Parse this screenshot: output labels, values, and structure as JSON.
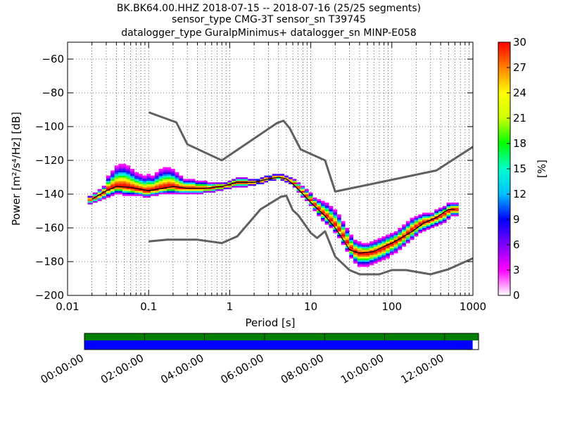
{
  "chart_data": {
    "type": "heatmap",
    "title_lines": [
      "BK.BK64.00.HHZ   2018-07-15 -- 2018-07-16  (25/25 segments)",
      "sensor_type CMG-3T sensor_sn T39745",
      "datalogger_type GuralpMinimus+ datalogger_sn MINP-E058"
    ],
    "xlabel": "Period [s]",
    "ylabel": "Power [m²/s⁴/Hz] [dB]",
    "x_scale": "log",
    "xlim": [
      0.01,
      1000
    ],
    "ylim": [
      -200,
      -50
    ],
    "x_ticks": [
      {
        "value": 0.01,
        "label": "0.01"
      },
      {
        "value": 0.1,
        "label": "0.1"
      },
      {
        "value": 1,
        "label": "1"
      },
      {
        "value": 10,
        "label": "10"
      },
      {
        "value": 100,
        "label": "100"
      },
      {
        "value": 1000,
        "label": "1000"
      }
    ],
    "y_ticks": [
      {
        "value": -60,
        "label": "−60"
      },
      {
        "value": -80,
        "label": "−80"
      },
      {
        "value": -100,
        "label": "−100"
      },
      {
        "value": -120,
        "label": "−120"
      },
      {
        "value": -140,
        "label": "−140"
      },
      {
        "value": -160,
        "label": "−160"
      },
      {
        "value": -180,
        "label": "−180"
      },
      {
        "value": -200,
        "label": "−200"
      }
    ],
    "grid": "dotted",
    "colorbar": {
      "label": "[%]",
      "range": [
        0,
        30
      ],
      "ticks": [
        {
          "value": 0,
          "label": "0"
        },
        {
          "value": 3,
          "label": "3"
        },
        {
          "value": 6,
          "label": "6"
        },
        {
          "value": 9,
          "label": "9"
        },
        {
          "value": 12,
          "label": "12"
        },
        {
          "value": 15,
          "label": "15"
        },
        {
          "value": 18,
          "label": "18"
        },
        {
          "value": 21,
          "label": "21"
        },
        {
          "value": 24,
          "label": "24"
        },
        {
          "value": 27,
          "label": "27"
        },
        {
          "value": 30,
          "label": "30"
        }
      ],
      "stops": [
        "#ffffff",
        "#ff00ff",
        "#7f00ff",
        "#0000ff",
        "#00bfff",
        "#00ffcc",
        "#00ff00",
        "#ccff00",
        "#ffff00",
        "#ff8000",
        "#ff0000"
      ]
    },
    "series": [
      {
        "color": "#606060",
        "points": [
          [
            0.1,
            -91.5
          ],
          [
            0.22,
            -97.5
          ],
          [
            0.3,
            -110.5
          ],
          [
            0.8,
            -120
          ],
          [
            3.8,
            -98
          ],
          [
            4.6,
            -96.5
          ],
          [
            5.5,
            -101
          ],
          [
            7.5,
            -113.5
          ],
          [
            15,
            -120
          ],
          [
            20,
            -138.5
          ],
          [
            354,
            -126
          ],
          [
            1000,
            -112
          ]
        ]
      },
      {
        "color": "#606060",
        "points": [
          [
            0.1,
            -168
          ],
          [
            0.17,
            -167
          ],
          [
            0.4,
            -167
          ],
          [
            0.8,
            -169
          ],
          [
            1.24,
            -165
          ],
          [
            2.4,
            -149
          ],
          [
            4.3,
            -141.5
          ],
          [
            5,
            -141
          ],
          [
            6,
            -149.5
          ],
          [
            7,
            -152.5
          ],
          [
            10,
            -163
          ],
          [
            12,
            -166
          ],
          [
            15,
            -162
          ],
          [
            20,
            -177
          ],
          [
            30,
            -185
          ],
          [
            40,
            -187.5
          ],
          [
            70,
            -187.5
          ],
          [
            100,
            -185
          ],
          [
            150,
            -185
          ],
          [
            300,
            -187.5
          ],
          [
            500,
            -184.5
          ],
          [
            1000,
            -178
          ]
        ]
      },
      {
        "color": "#000000",
        "points": [
          [
            0.02,
            -143
          ],
          [
            0.03,
            -138
          ],
          [
            0.04,
            -135.5
          ],
          [
            0.06,
            -136
          ],
          [
            0.1,
            -138
          ],
          [
            0.2,
            -135.5
          ],
          [
            0.3,
            -136.5
          ],
          [
            0.5,
            -136.5
          ],
          [
            0.8,
            -135.5
          ],
          [
            1.2,
            -133
          ],
          [
            2,
            -133
          ],
          [
            3,
            -131
          ],
          [
            4,
            -130
          ],
          [
            5,
            -131
          ],
          [
            6,
            -134
          ],
          [
            8,
            -140
          ],
          [
            10,
            -145
          ],
          [
            15,
            -153
          ],
          [
            20,
            -160
          ],
          [
            25,
            -167
          ],
          [
            30,
            -173
          ],
          [
            40,
            -175
          ],
          [
            60,
            -174
          ],
          [
            80,
            -171
          ],
          [
            100,
            -169
          ],
          [
            130,
            -166
          ],
          [
            180,
            -162
          ],
          [
            250,
            -157
          ],
          [
            350,
            -154
          ],
          [
            500,
            -149
          ],
          [
            600,
            -149
          ]
        ]
      }
    ],
    "histogram_columns": [
      {
        "x": 0.019,
        "y_range": [
          -146,
          -141
        ],
        "peak": -143
      },
      {
        "x": 0.022,
        "y_range": [
          -145,
          -139
        ],
        "peak": -142
      },
      {
        "x": 0.025,
        "y_range": [
          -144,
          -137
        ],
        "peak": -140.5
      },
      {
        "x": 0.028,
        "y_range": [
          -143,
          -135
        ],
        "peak": -139
      },
      {
        "x": 0.032,
        "y_range": [
          -142,
          -129
        ],
        "peak": -137
      },
      {
        "x": 0.036,
        "y_range": [
          -141,
          -126
        ],
        "peak": -136
      },
      {
        "x": 0.04,
        "y_range": [
          -140,
          -123
        ],
        "peak": -135.5
      },
      {
        "x": 0.045,
        "y_range": [
          -140,
          -122
        ],
        "peak": -135.5
      },
      {
        "x": 0.05,
        "y_range": [
          -141,
          -122
        ],
        "peak": -135.5
      },
      {
        "x": 0.056,
        "y_range": [
          -141,
          -123
        ],
        "peak": -136
      },
      {
        "x": 0.063,
        "y_range": [
          -141,
          -125
        ],
        "peak": -136.5
      },
      {
        "x": 0.071,
        "y_range": [
          -141,
          -127
        ],
        "peak": -137
      },
      {
        "x": 0.08,
        "y_range": [
          -141,
          -128
        ],
        "peak": -137.5
      },
      {
        "x": 0.089,
        "y_range": [
          -142,
          -129
        ],
        "peak": -138
      },
      {
        "x": 0.1,
        "y_range": [
          -142,
          -128
        ],
        "peak": -138
      },
      {
        "x": 0.112,
        "y_range": [
          -141,
          -129
        ],
        "peak": -137.5
      },
      {
        "x": 0.126,
        "y_range": [
          -141,
          -127
        ],
        "peak": -137
      },
      {
        "x": 0.141,
        "y_range": [
          -140,
          -125
        ],
        "peak": -136.5
      },
      {
        "x": 0.158,
        "y_range": [
          -140,
          -124
        ],
        "peak": -136
      },
      {
        "x": 0.178,
        "y_range": [
          -140,
          -124
        ],
        "peak": -135.5
      },
      {
        "x": 0.2,
        "y_range": [
          -140,
          -125
        ],
        "peak": -135.5
      },
      {
        "x": 0.224,
        "y_range": [
          -140,
          -127
        ],
        "peak": -136
      },
      {
        "x": 0.251,
        "y_range": [
          -140,
          -129
        ],
        "peak": -136.5
      },
      {
        "x": 0.282,
        "y_range": [
          -140,
          -131
        ],
        "peak": -136.5
      },
      {
        "x": 0.316,
        "y_range": [
          -140,
          -131
        ],
        "peak": -136.5
      },
      {
        "x": 0.355,
        "y_range": [
          -140,
          -131
        ],
        "peak": -136.5
      },
      {
        "x": 0.398,
        "y_range": [
          -140,
          -132
        ],
        "peak": -136.5
      },
      {
        "x": 0.447,
        "y_range": [
          -140,
          -132
        ],
        "peak": -136.5
      },
      {
        "x": 0.501,
        "y_range": [
          -139,
          -132
        ],
        "peak": -136.5
      },
      {
        "x": 0.562,
        "y_range": [
          -139,
          -133
        ],
        "peak": -136.5
      },
      {
        "x": 0.631,
        "y_range": [
          -139,
          -133
        ],
        "peak": -136
      },
      {
        "x": 0.708,
        "y_range": [
          -138,
          -133
        ],
        "peak": -135.5
      },
      {
        "x": 0.794,
        "y_range": [
          -138,
          -133
        ],
        "peak": -135.5
      },
      {
        "x": 0.891,
        "y_range": [
          -137,
          -133
        ],
        "peak": -135
      },
      {
        "x": 1.0,
        "y_range": [
          -137,
          -132
        ],
        "peak": -134.5
      },
      {
        "x": 1.12,
        "y_range": [
          -136,
          -131
        ],
        "peak": -133.5
      },
      {
        "x": 1.26,
        "y_range": [
          -136,
          -130
        ],
        "peak": -133
      },
      {
        "x": 1.41,
        "y_range": [
          -136,
          -130
        ],
        "peak": -133
      },
      {
        "x": 1.58,
        "y_range": [
          -136,
          -130
        ],
        "peak": -133
      },
      {
        "x": 1.78,
        "y_range": [
          -135,
          -131
        ],
        "peak": -133
      },
      {
        "x": 2.0,
        "y_range": [
          -135,
          -131
        ],
        "peak": -133
      },
      {
        "x": 2.24,
        "y_range": [
          -134,
          -131
        ],
        "peak": -132.5
      },
      {
        "x": 2.51,
        "y_range": [
          -134,
          -130
        ],
        "peak": -132
      },
      {
        "x": 2.82,
        "y_range": [
          -133,
          -129
        ],
        "peak": -131
      },
      {
        "x": 3.16,
        "y_range": [
          -132,
          -129
        ],
        "peak": -130.5
      },
      {
        "x": 3.55,
        "y_range": [
          -132,
          -128
        ],
        "peak": -130
      },
      {
        "x": 3.98,
        "y_range": [
          -131,
          -128
        ],
        "peak": -130
      },
      {
        "x": 4.47,
        "y_range": [
          -132,
          -128
        ],
        "peak": -130
      },
      {
        "x": 5.01,
        "y_range": [
          -133,
          -129
        ],
        "peak": -131
      },
      {
        "x": 5.62,
        "y_range": [
          -134,
          -130
        ],
        "peak": -132
      },
      {
        "x": 6.31,
        "y_range": [
          -136,
          -131
        ],
        "peak": -133.5
      },
      {
        "x": 7.08,
        "y_range": [
          -139,
          -133
        ],
        "peak": -136
      },
      {
        "x": 7.94,
        "y_range": [
          -142,
          -135
        ],
        "peak": -138.5
      },
      {
        "x": 8.91,
        "y_range": [
          -144,
          -137
        ],
        "peak": -141
      },
      {
        "x": 10.0,
        "y_range": [
          -147,
          -139
        ],
        "peak": -143.5
      },
      {
        "x": 11.2,
        "y_range": [
          -150,
          -142
        ],
        "peak": -146
      },
      {
        "x": 12.6,
        "y_range": [
          -153,
          -143
        ],
        "peak": -148.5
      },
      {
        "x": 14.1,
        "y_range": [
          -156,
          -144
        ],
        "peak": -151
      },
      {
        "x": 15.8,
        "y_range": [
          -158,
          -145
        ],
        "peak": -153
      },
      {
        "x": 17.8,
        "y_range": [
          -160,
          -147
        ],
        "peak": -155.5
      },
      {
        "x": 20.0,
        "y_range": [
          -163,
          -149
        ],
        "peak": -158
      },
      {
        "x": 22.4,
        "y_range": [
          -166,
          -152
        ],
        "peak": -161
      },
      {
        "x": 25.1,
        "y_range": [
          -170,
          -156
        ],
        "peak": -164.5
      },
      {
        "x": 28.2,
        "y_range": [
          -174,
          -160
        ],
        "peak": -168.5
      },
      {
        "x": 31.6,
        "y_range": [
          -178,
          -164
        ],
        "peak": -172
      },
      {
        "x": 35.5,
        "y_range": [
          -181,
          -167
        ],
        "peak": -174
      },
      {
        "x": 39.8,
        "y_range": [
          -183,
          -168
        ],
        "peak": -175
      },
      {
        "x": 44.7,
        "y_range": [
          -183,
          -169
        ],
        "peak": -175
      },
      {
        "x": 50.1,
        "y_range": [
          -183,
          -169
        ],
        "peak": -175
      },
      {
        "x": 56.2,
        "y_range": [
          -182,
          -168
        ],
        "peak": -174.5
      },
      {
        "x": 63.1,
        "y_range": [
          -181,
          -167
        ],
        "peak": -174
      },
      {
        "x": 70.8,
        "y_range": [
          -180,
          -166
        ],
        "peak": -173
      },
      {
        "x": 79.4,
        "y_range": [
          -179,
          -165
        ],
        "peak": -172
      },
      {
        "x": 89.1,
        "y_range": [
          -178,
          -164
        ],
        "peak": -170.5
      },
      {
        "x": 100,
        "y_range": [
          -176,
          -163
        ],
        "peak": -169.5
      },
      {
        "x": 112,
        "y_range": [
          -175,
          -162
        ],
        "peak": -168
      },
      {
        "x": 126,
        "y_range": [
          -173,
          -160
        ],
        "peak": -166.5
      },
      {
        "x": 141,
        "y_range": [
          -171,
          -158
        ],
        "peak": -165
      },
      {
        "x": 158,
        "y_range": [
          -169,
          -156
        ],
        "peak": -163
      },
      {
        "x": 178,
        "y_range": [
          -167,
          -154
        ],
        "peak": -161
      },
      {
        "x": 200,
        "y_range": [
          -165,
          -153
        ],
        "peak": -159
      },
      {
        "x": 224,
        "y_range": [
          -163,
          -152
        ],
        "peak": -157.5
      },
      {
        "x": 251,
        "y_range": [
          -162,
          -151
        ],
        "peak": -156.5
      },
      {
        "x": 282,
        "y_range": [
          -161,
          -151
        ],
        "peak": -156
      },
      {
        "x": 316,
        "y_range": [
          -160,
          -151
        ],
        "peak": -155
      },
      {
        "x": 355,
        "y_range": [
          -159,
          -149
        ],
        "peak": -154
      },
      {
        "x": 398,
        "y_range": [
          -158,
          -148
        ],
        "peak": -153
      },
      {
        "x": 447,
        "y_range": [
          -157,
          -147
        ],
        "peak": -151.5
      },
      {
        "x": 501,
        "y_range": [
          -155,
          -145
        ],
        "peak": -150
      },
      {
        "x": 562,
        "y_range": [
          -153,
          -145
        ],
        "peak": -149
      },
      {
        "x": 631,
        "y_range": [
          -153,
          -145
        ],
        "peak": -149
      }
    ],
    "timeline": {
      "tick_labels": [
        "00:00:00",
        "02:00:00",
        "04:00:00",
        "06:00:00",
        "08:00:00",
        "10:00:00",
        "12:00:00"
      ],
      "upper_bar_color": "#007f00",
      "lower_bar_color": "#0000ff",
      "lower_bar_fraction": 0.985
    }
  }
}
